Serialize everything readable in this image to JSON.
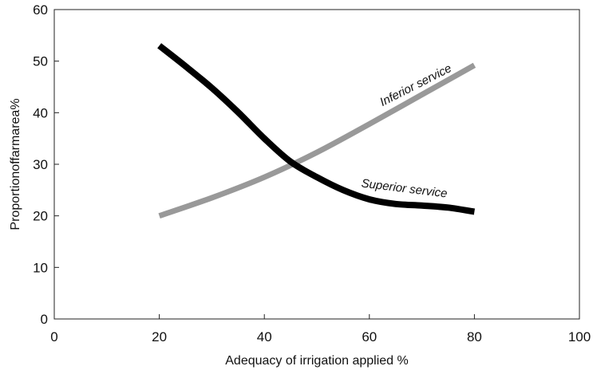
{
  "chart_data": {
    "type": "line",
    "title": "",
    "xlabel": "Adequacy of irrigation applied %",
    "ylabel": "Proportionoffarmarea%",
    "xlim": [
      0,
      100
    ],
    "ylim": [
      0,
      60
    ],
    "xticks": [
      "0",
      "20",
      "40",
      "60",
      "80",
      "100"
    ],
    "yticks": [
      "0",
      "10",
      "20",
      "30",
      "40",
      "50",
      "60"
    ],
    "grid": false,
    "legend": "none",
    "series": [
      {
        "name": "Inferior service",
        "color": "#999999",
        "x": [
          20,
          30,
          40,
          50,
          60,
          70,
          80
        ],
        "y": [
          20,
          23.5,
          27.5,
          32.3,
          37.8,
          43.5,
          49.2
        ]
      },
      {
        "name": "Superior service",
        "color": "#000000",
        "x": [
          20,
          25,
          30,
          35,
          40,
          45,
          50,
          55,
          60,
          65,
          70,
          75,
          80
        ],
        "y": [
          53,
          49,
          44.8,
          40.1,
          35,
          30.5,
          27.5,
          25,
          23.2,
          22.3,
          22,
          21.6,
          20.8
        ]
      }
    ]
  }
}
